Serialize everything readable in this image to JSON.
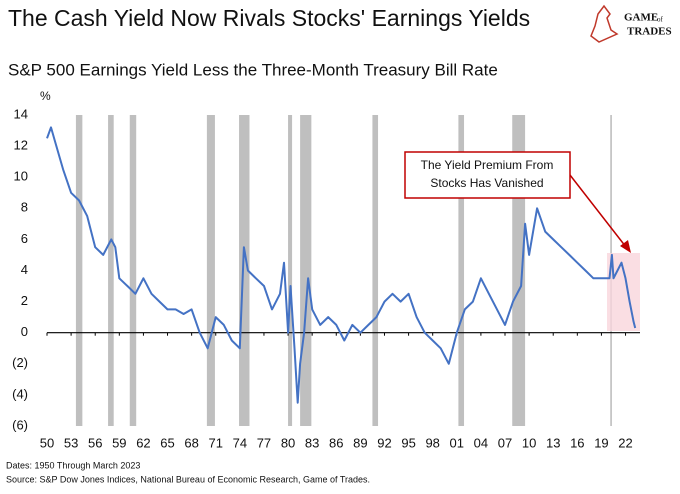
{
  "chart_data": {
    "type": "line",
    "title": "The Cash Yield Now Rivals Stocks' Earnings Yields",
    "subtitle": "S&P 500 Earnings Yield Less the Three-Month Treasury Bill Rate",
    "y_unit": "%",
    "logo": [
      "GAME",
      "of",
      "TRADES"
    ],
    "annotation": [
      "The Yield Premium From",
      "Stocks Has Vanished"
    ],
    "footnotes": [
      "Dates: 1950 Through March 2023",
      "Source: S&P Dow Jones Indices, National Bureau of Economic Research, Game of Trades."
    ],
    "xlim": [
      1950,
      2023.8
    ],
    "ylim": [
      -6,
      14
    ],
    "xticks": [
      {
        "value": 1950,
        "label": "50"
      },
      {
        "value": 1953,
        "label": "53"
      },
      {
        "value": 1956,
        "label": "56"
      },
      {
        "value": 1959,
        "label": "59"
      },
      {
        "value": 1962,
        "label": "62"
      },
      {
        "value": 1965,
        "label": "65"
      },
      {
        "value": 1968,
        "label": "68"
      },
      {
        "value": 1971,
        "label": "71"
      },
      {
        "value": 1974,
        "label": "74"
      },
      {
        "value": 1977,
        "label": "77"
      },
      {
        "value": 1980,
        "label": "80"
      },
      {
        "value": 1983,
        "label": "83"
      },
      {
        "value": 1986,
        "label": "86"
      },
      {
        "value": 1989,
        "label": "89"
      },
      {
        "value": 1992,
        "label": "92"
      },
      {
        "value": 1995,
        "label": "95"
      },
      {
        "value": 1998,
        "label": "98"
      },
      {
        "value": 2001,
        "label": "01"
      },
      {
        "value": 2004,
        "label": "04"
      },
      {
        "value": 2007,
        "label": "07"
      },
      {
        "value": 2010,
        "label": "10"
      },
      {
        "value": 2013,
        "label": "13"
      },
      {
        "value": 2016,
        "label": "16"
      },
      {
        "value": 2019,
        "label": "19"
      },
      {
        "value": 2022,
        "label": "22"
      }
    ],
    "yticks": [
      {
        "value": -6,
        "label": "(6)"
      },
      {
        "value": -4,
        "label": "(4)"
      },
      {
        "value": -2,
        "label": "(2)"
      },
      0,
      2,
      4,
      6,
      8,
      10,
      12,
      14
    ],
    "recessions": [
      {
        "start": 1953.6,
        "end": 1954.4
      },
      {
        "start": 1957.6,
        "end": 1958.3
      },
      {
        "start": 1960.3,
        "end": 1961.1
      },
      {
        "start": 1969.9,
        "end": 1970.9
      },
      {
        "start": 1973.9,
        "end": 1975.2
      },
      {
        "start": 1980.0,
        "end": 1980.5
      },
      {
        "start": 1981.5,
        "end": 1982.9
      },
      {
        "start": 1990.5,
        "end": 1991.2
      },
      {
        "start": 2001.2,
        "end": 2001.9
      },
      {
        "start": 2007.9,
        "end": 2009.5
      },
      {
        "start": 2020.1,
        "end": 2020.3
      }
    ],
    "recession_color": "#bfbfbf",
    "series": [
      {
        "color": "#4472c4",
        "x": [
          1950,
          1950.5,
          1951,
          1952,
          1953,
          1954,
          1955,
          1956,
          1957,
          1958,
          1958.5,
          1959,
          1960,
          1961,
          1962,
          1963,
          1964,
          1965,
          1966,
          1967,
          1968,
          1969,
          1970,
          1970.5,
          1971,
          1972,
          1973,
          1974,
          1974.5,
          1975,
          1976,
          1977,
          1978,
          1979,
          1979.5,
          1980,
          1980.3,
          1980.8,
          1981.2,
          1981.5,
          1982,
          1982.5,
          1983,
          1984,
          1985,
          1986,
          1987,
          1988,
          1989,
          1990,
          1991,
          1992,
          1993,
          1994,
          1995,
          1996,
          1997,
          1998,
          1999,
          2000,
          2001,
          2002,
          2003,
          2004,
          2005,
          2006,
          2007,
          2008,
          2009,
          2009.5,
          2010,
          2010.5,
          2011,
          2012,
          2013,
          2014,
          2015,
          2016,
          2017,
          2018,
          2019,
          2020,
          2020.3,
          2020.5,
          2021,
          2021.5,
          2022,
          2022.5,
          2023,
          2023.2
        ],
        "values": [
          12.5,
          13.2,
          12.3,
          10.5,
          9,
          8.5,
          7.5,
          5.5,
          5,
          6,
          5.5,
          3.5,
          3,
          2.5,
          3.5,
          2.5,
          2,
          1.5,
          1.5,
          1.2,
          1.5,
          0,
          -1,
          0,
          1,
          0.5,
          -0.5,
          -1,
          5.5,
          4,
          3.5,
          3,
          1.5,
          2.5,
          4.5,
          0,
          3,
          -1,
          -4.5,
          -2,
          0,
          3.5,
          1.5,
          0.5,
          1,
          0.5,
          -0.5,
          0.5,
          0,
          0.5,
          1,
          2,
          2.5,
          2,
          2.5,
          1,
          0,
          -0.5,
          -1,
          -2,
          0,
          1.5,
          2,
          3.5,
          2.5,
          1.5,
          0.5,
          2,
          3,
          7,
          5,
          6.5,
          8,
          6.5,
          6,
          5.5,
          5,
          4.5,
          4,
          3.5,
          3.5,
          3.5,
          5,
          3.5,
          4,
          4.5,
          3.5,
          2,
          0.7,
          0.3
        ]
      }
    ]
  }
}
